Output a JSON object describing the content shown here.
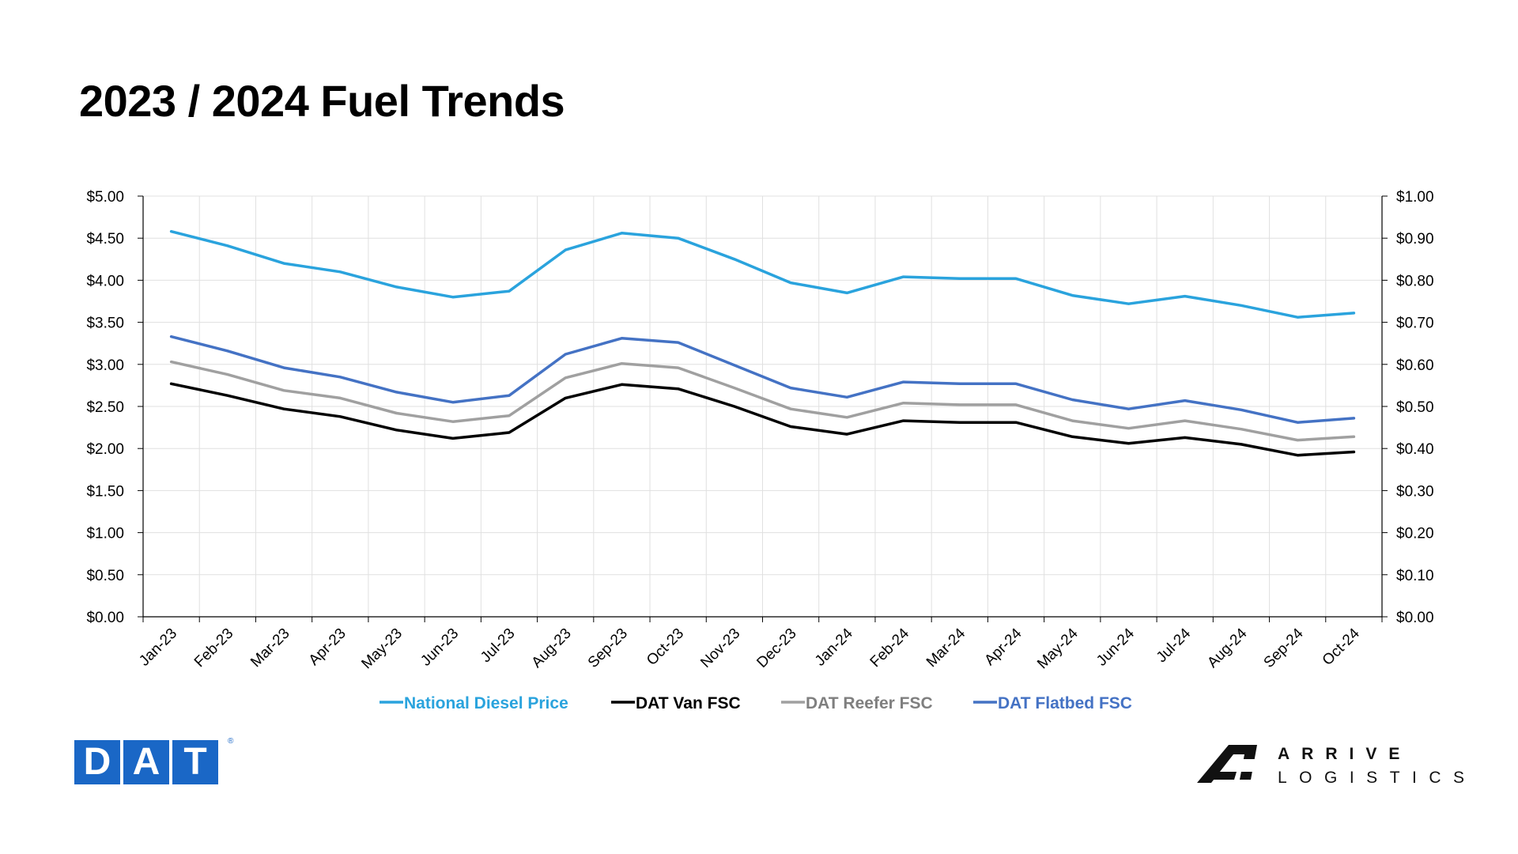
{
  "page": {
    "title": "2023 / 2024 Fuel Trends"
  },
  "chart_data": {
    "type": "line",
    "title": "2023 / 2024 Fuel Trends",
    "categories": [
      "Jan-23",
      "Feb-23",
      "Mar-23",
      "Apr-23",
      "May-23",
      "Jun-23",
      "Jul-23",
      "Aug-23",
      "Sep-23",
      "Oct-23",
      "Nov-23",
      "Dec-23",
      "Jan-24",
      "Feb-24",
      "Mar-24",
      "Apr-24",
      "May-24",
      "Jun-24",
      "Jul-24",
      "Aug-24",
      "Sep-24",
      "Oct-24"
    ],
    "y_left": {
      "ticks": [
        "$0.00",
        "$0.50",
        "$1.00",
        "$1.50",
        "$2.00",
        "$2.50",
        "$3.00",
        "$3.50",
        "$4.00",
        "$4.50",
        "$5.00"
      ],
      "ylim": [
        0,
        5
      ]
    },
    "y_right": {
      "ticks": [
        "$0.00",
        "$0.10",
        "$0.20",
        "$0.30",
        "$0.40",
        "$0.50",
        "$0.60",
        "$0.70",
        "$0.80",
        "$0.90",
        "$1.00"
      ],
      "ylim": [
        0,
        1
      ]
    },
    "grid": true,
    "legend_position": "bottom",
    "series": [
      {
        "name": "National Diesel Price",
        "axis": "left",
        "color": "#2aa3dd",
        "values": [
          4.58,
          4.41,
          4.2,
          4.1,
          3.92,
          3.8,
          3.87,
          4.36,
          4.56,
          4.5,
          4.25,
          3.97,
          3.85,
          4.04,
          4.02,
          4.02,
          3.82,
          3.72,
          3.81,
          3.7,
          3.56,
          3.61
        ]
      },
      {
        "name": "DAT Van FSC",
        "axis": "right",
        "color": "#000000",
        "values": [
          0.554,
          0.526,
          0.494,
          0.476,
          0.444,
          0.424,
          0.438,
          0.52,
          0.552,
          0.542,
          0.5,
          0.452,
          0.434,
          0.466,
          0.462,
          0.462,
          0.428,
          0.412,
          0.426,
          0.41,
          0.384,
          0.392
        ]
      },
      {
        "name": "DAT Reefer FSC",
        "axis": "right",
        "color": "#a0a0a0",
        "values": [
          0.606,
          0.576,
          0.538,
          0.52,
          0.484,
          0.464,
          0.478,
          0.568,
          0.602,
          0.592,
          0.544,
          0.494,
          0.474,
          0.508,
          0.504,
          0.504,
          0.466,
          0.448,
          0.466,
          0.446,
          0.42,
          0.428
        ]
      },
      {
        "name": "DAT Flatbed FSC",
        "axis": "right",
        "color": "#4472c4",
        "values": [
          0.666,
          0.632,
          0.592,
          0.57,
          0.534,
          0.51,
          0.526,
          0.624,
          0.662,
          0.652,
          0.598,
          0.544,
          0.522,
          0.558,
          0.554,
          0.554,
          0.516,
          0.494,
          0.514,
          0.492,
          0.462,
          0.472
        ]
      }
    ]
  },
  "logos": {
    "dat": {
      "letters": [
        "D",
        "A",
        "T"
      ],
      "registered": "®",
      "color": "#1a67c6"
    },
    "arrive": {
      "line1": "ARRIVE",
      "line2": "LOGISTICS",
      "icon": "arrive-a-logo-icon"
    }
  }
}
